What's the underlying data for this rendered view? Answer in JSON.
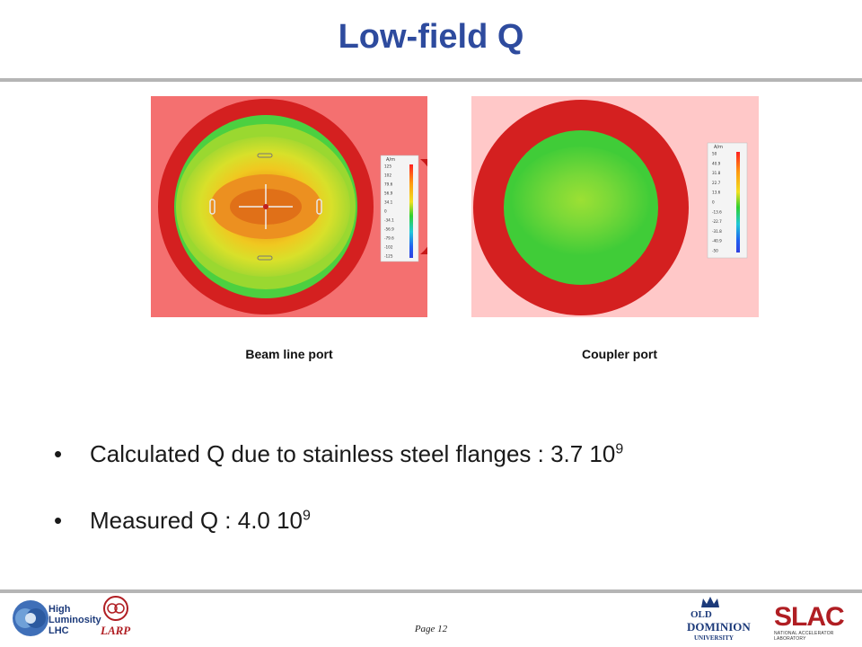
{
  "title": "Low-field Q",
  "panels": [
    {
      "caption": "Beam line port",
      "legend_unit": "A/m",
      "legend_ticks": [
        "125",
        "102",
        "79.6",
        "56.9",
        "34.1",
        "0",
        "-34.1",
        "-56.9",
        "-79.6",
        "-102",
        "-125"
      ]
    },
    {
      "caption": "Coupler port",
      "legend_unit": "A/m",
      "legend_ticks": [
        "50",
        "40.9",
        "31.8",
        "22.7",
        "13.6",
        "0",
        "-13.6",
        "-22.7",
        "-31.8",
        "-40.9",
        "-50"
      ]
    }
  ],
  "bullets": [
    {
      "symbol": "•",
      "text": "Calculated Q due to stainless steel flanges : 3.7 10",
      "sup": "9"
    },
    {
      "symbol": "•",
      "text": "Measured Q : 4.0 10",
      "sup": "9"
    }
  ],
  "footer": {
    "page_label": "Page 12",
    "logos": {
      "hl_lhc": [
        "High",
        "Luminosity",
        "LHC"
      ],
      "larp": "LARP",
      "odu": [
        "OLD",
        "DOMINION",
        "UNIVERSITY"
      ],
      "slac": [
        "SLAC",
        "NATIONAL ACCELERATOR LABORATORY"
      ]
    }
  },
  "colors": {
    "title": "#2e4b9e",
    "rule": "#b5b5b5",
    "outer_ring": "#d42020",
    "panel1_bg": "#f47070",
    "panel2_bg": "#ffc8c8",
    "brand_red": "#b01e23"
  }
}
